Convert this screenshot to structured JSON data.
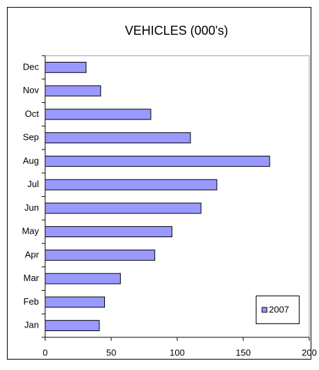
{
  "chart_data": {
    "type": "barh",
    "title": "VEHICLES (000's)",
    "categories": [
      "Jan",
      "Feb",
      "Mar",
      "Apr",
      "May",
      "Jun",
      "Jul",
      "Aug",
      "Sep",
      "Oct",
      "Nov",
      "Dec"
    ],
    "series": [
      {
        "name": "2007",
        "color": "#9999ff",
        "values": [
          41,
          45,
          57,
          83,
          96,
          118,
          130,
          170,
          110,
          80,
          42,
          31
        ]
      }
    ],
    "xlim": [
      0,
      200
    ],
    "xticks": [
      0,
      50,
      100,
      150,
      200
    ],
    "legend": "lower right"
  }
}
